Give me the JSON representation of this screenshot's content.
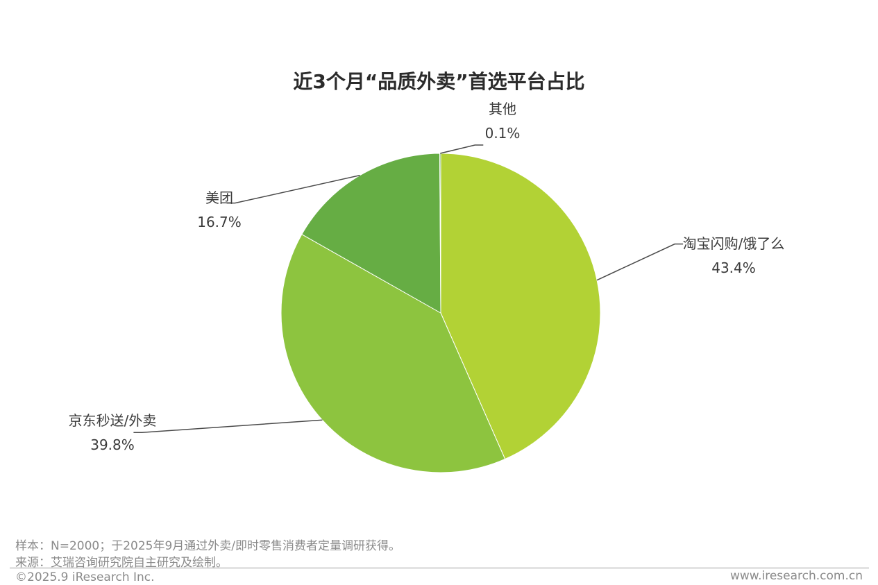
{
  "chart_data": {
    "type": "pie",
    "title": "近3个月“品质外卖”首选平台占比",
    "slices": [
      {
        "label": "淘宝闪购/饿了么",
        "value": 43.4,
        "value_label": "43.4%",
        "color": "#b2d235"
      },
      {
        "label": "京东秒送/外卖",
        "value": 39.8,
        "value_label": "39.8%",
        "color": "#8dc43f"
      },
      {
        "label": "美团",
        "value": 16.7,
        "value_label": "16.7%",
        "color": "#66ad44"
      },
      {
        "label": "其他",
        "value": 0.1,
        "value_label": "0.1%",
        "color": "#4f9a3a"
      }
    ],
    "start_angle": "12 o'clock",
    "direction": "clockwise",
    "legend": "none",
    "labels": "outside with leader lines"
  },
  "footer": {
    "sample_note": "样本：N=2000；于2025年9月通过外卖/即时零售消费者定量调研获得。",
    "source_note": "来源：艾瑞咨询研究院自主研究及绘制。",
    "copyright": "©2025.9 iResearch Inc.",
    "website": "www.iresearch.com.cn"
  }
}
